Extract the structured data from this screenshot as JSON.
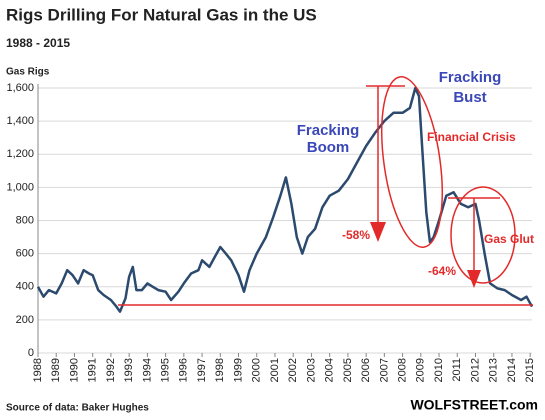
{
  "chart_data": {
    "type": "line",
    "title": "Rigs Drilling For Natural Gas in the US",
    "subtitle": "1988 - 2015",
    "y_label": "Gas Rigs",
    "source": "Source of data: Baker Hughes",
    "credit": "WOLFSTREET.com",
    "annotations": [
      "Fracking",
      "Boom",
      "Fracking",
      "Bust",
      "Financial Crisis",
      "-58%",
      "Gas Glut",
      "-64%"
    ],
    "color": "#2b4a6e",
    "x": [
      1988.0,
      1988.3,
      1988.6,
      1989.0,
      1989.3,
      1989.6,
      1989.9,
      1990.2,
      1990.5,
      1990.8,
      1991.0,
      1991.3,
      1991.6,
      1992.0,
      1992.3,
      1992.5,
      1992.8,
      1993.0,
      1993.2,
      1993.4,
      1993.7,
      1994.0,
      1994.3,
      1994.6,
      1995.0,
      1995.3,
      1995.7,
      1996.0,
      1996.4,
      1996.8,
      1997.0,
      1997.4,
      1997.7,
      1998.0,
      1998.3,
      1998.6,
      1999.0,
      1999.3,
      1999.6,
      2000.0,
      2000.5,
      2000.9,
      2001.3,
      2001.6,
      2001.9,
      2002.2,
      2002.5,
      2002.8,
      2003.2,
      2003.6,
      2004.0,
      2004.5,
      2005.0,
      2005.5,
      2006.0,
      2006.5,
      2007.0,
      2007.5,
      2008.0,
      2008.4,
      2008.7,
      2008.9,
      2009.1,
      2009.3,
      2009.5,
      2009.7,
      2010.0,
      2010.4,
      2010.8,
      2011.2,
      2011.6,
      2012.0,
      2012.2,
      2012.5,
      2012.8,
      2013.2,
      2013.6,
      2014.0,
      2014.5,
      2014.8,
      2015.0,
      2015.1
    ],
    "values": [
      400,
      340,
      380,
      360,
      420,
      500,
      470,
      420,
      500,
      480,
      470,
      380,
      350,
      320,
      280,
      250,
      330,
      460,
      520,
      380,
      380,
      420,
      400,
      380,
      370,
      320,
      370,
      420,
      480,
      500,
      560,
      520,
      580,
      640,
      600,
      560,
      470,
      370,
      500,
      600,
      700,
      820,
      950,
      1060,
      900,
      700,
      600,
      700,
      750,
      880,
      950,
      980,
      1050,
      1150,
      1250,
      1330,
      1400,
      1450,
      1450,
      1480,
      1600,
      1550,
      1200,
      850,
      670,
      700,
      800,
      950,
      970,
      900,
      880,
      900,
      800,
      600,
      420,
      390,
      380,
      350,
      320,
      340,
      300,
      280
    ],
    "xlim": [
      1988,
      2015.1
    ],
    "xticks": [
      1988,
      1989,
      1990,
      1991,
      1992,
      1993,
      1994,
      1995,
      1996,
      1997,
      1998,
      1999,
      2000,
      2001,
      2002,
      2003,
      2004,
      2005,
      2006,
      2007,
      2008,
      2009,
      2010,
      2011,
      2012,
      2013,
      2014,
      2015
    ],
    "ylim": [
      0,
      1600
    ],
    "yticks": [
      0,
      200,
      400,
      600,
      800,
      {
        "value": 1000,
        "label": "1,000"
      },
      {
        "value": 1200,
        "label": "1,200"
      },
      {
        "value": 1400,
        "label": "1,400"
      },
      {
        "value": 1600,
        "label": "1,600"
      }
    ],
    "grid": true
  }
}
